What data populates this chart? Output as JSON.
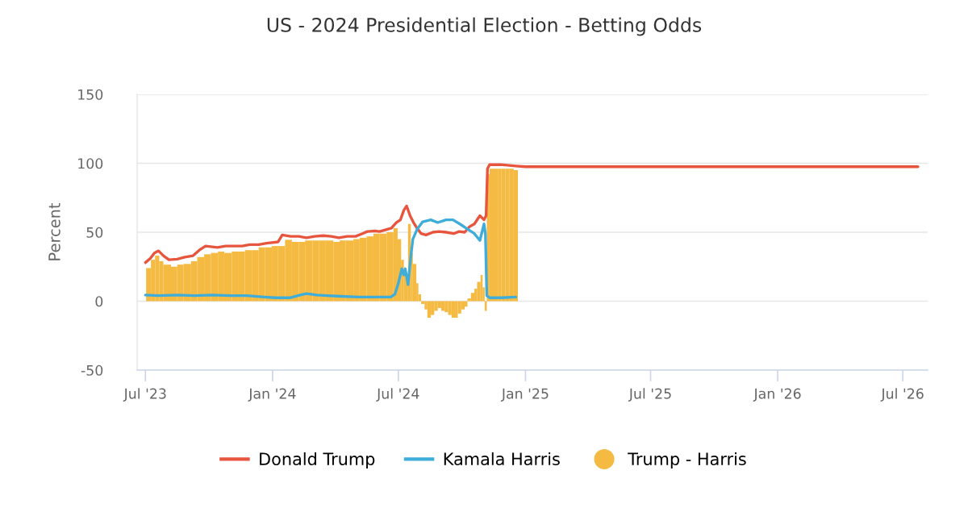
{
  "chart_data": {
    "type": "line",
    "title": "US - 2024 Presidential Election - Betting Odds",
    "ylabel": "Percent",
    "xlim": [
      "2023-06-19",
      "2026-08-06"
    ],
    "xticks": [
      {
        "value": "2023-07-01",
        "label": "Jul '23"
      },
      {
        "value": "2024-01-01",
        "label": "Jan '24"
      },
      {
        "value": "2024-07-01",
        "label": "Jul '24"
      },
      {
        "value": "2025-01-01",
        "label": "Jan '25"
      },
      {
        "value": "2025-07-01",
        "label": "Jul '25"
      },
      {
        "value": "2026-01-01",
        "label": "Jan '26"
      },
      {
        "value": "2026-07-01",
        "label": "Jul '26"
      }
    ],
    "ylim": [
      -50,
      150
    ],
    "yticks": [
      -50,
      0,
      50,
      100,
      150
    ],
    "grid": "y",
    "legend": "bottom",
    "series": [
      {
        "name": "Donald Trump",
        "color": "#e8553e",
        "x": [
          "2023-07-01",
          "2023-07-08",
          "2023-07-14",
          "2023-07-20",
          "2023-07-27",
          "2023-08-04",
          "2023-08-16",
          "2023-08-27",
          "2023-09-08",
          "2023-09-17",
          "2023-09-26",
          "2023-10-13",
          "2023-10-25",
          "2023-11-06",
          "2023-11-18",
          "2023-11-29",
          "2023-12-12",
          "2023-12-23",
          "2024-01-09",
          "2024-01-15",
          "2024-01-27",
          "2024-02-08",
          "2024-02-19",
          "2024-03-02",
          "2024-03-14",
          "2024-03-26",
          "2024-04-06",
          "2024-04-18",
          "2024-04-30",
          "2024-05-10",
          "2024-05-17",
          "2024-05-28",
          "2024-06-04",
          "2024-06-14",
          "2024-06-21",
          "2024-06-28",
          "2024-07-04",
          "2024-07-09",
          "2024-07-13",
          "2024-07-18",
          "2024-07-23",
          "2024-07-28",
          "2024-08-03",
          "2024-08-10",
          "2024-08-20",
          "2024-08-29",
          "2024-09-08",
          "2024-09-19",
          "2024-09-27",
          "2024-10-05",
          "2024-10-12",
          "2024-10-19",
          "2024-10-27",
          "2024-11-02",
          "2024-11-05",
          "2024-11-07",
          "2024-11-10",
          "2024-11-26",
          "2024-12-18",
          "2025-01-01",
          "2026-07-23"
        ],
        "values": [
          28,
          31,
          35,
          36.5,
          33,
          30,
          30.5,
          32,
          33,
          37,
          40,
          39,
          40,
          40,
          40,
          41,
          41,
          42,
          43,
          48,
          47,
          47,
          46,
          47,
          47.5,
          47,
          46,
          47,
          47,
          49,
          50.5,
          51,
          50.5,
          52,
          53,
          57,
          59,
          66,
          69,
          62,
          57,
          53,
          49,
          48,
          50,
          50.5,
          50,
          49,
          50.5,
          50,
          54,
          56,
          62,
          59,
          62,
          96,
          99,
          99,
          98,
          97.5,
          97.5
        ]
      },
      {
        "name": "Kamala Harris",
        "color": "#3fadda",
        "x": [
          "2023-07-01",
          "2023-07-20",
          "2023-08-16",
          "2023-09-10",
          "2023-10-05",
          "2023-11-01",
          "2023-11-25",
          "2023-12-20",
          "2024-01-05",
          "2024-01-27",
          "2024-02-10",
          "2024-02-19",
          "2024-03-05",
          "2024-03-20",
          "2024-04-10",
          "2024-05-05",
          "2024-05-30",
          "2024-06-20",
          "2024-06-26",
          "2024-07-01",
          "2024-07-06",
          "2024-07-09",
          "2024-07-11",
          "2024-07-15",
          "2024-07-19",
          "2024-07-22",
          "2024-07-28",
          "2024-08-05",
          "2024-08-17",
          "2024-08-27",
          "2024-09-08",
          "2024-09-18",
          "2024-09-28",
          "2024-10-10",
          "2024-10-19",
          "2024-10-27",
          "2024-11-02",
          "2024-11-04",
          "2024-11-06",
          "2024-11-10",
          "2024-11-26",
          "2024-12-18"
        ],
        "values": [
          4.5,
          4,
          4.5,
          4,
          4.5,
          4,
          4,
          3,
          2.5,
          2.5,
          4.5,
          5.5,
          4.5,
          4,
          3.5,
          3,
          3,
          3,
          5,
          13,
          23.5,
          19,
          23.5,
          12,
          32,
          45,
          52,
          57.5,
          59,
          57,
          59,
          59,
          56,
          52,
          49,
          44,
          56,
          49,
          4,
          2.5,
          2.5,
          3
        ]
      },
      {
        "name": "Trump - Harris",
        "type": "bar",
        "color": "#f5ba42",
        "x": [
          "2023-07-02",
          "2023-07-09",
          "2023-07-15",
          "2023-07-21",
          "2023-07-27",
          "2023-08-07",
          "2023-08-16",
          "2023-08-25",
          "2023-09-05",
          "2023-09-14",
          "2023-09-24",
          "2023-10-04",
          "2023-10-14",
          "2023-10-23",
          "2023-11-03",
          "2023-11-12",
          "2023-11-22",
          "2023-12-02",
          "2023-12-12",
          "2023-12-21",
          "2023-12-31",
          "2024-01-09",
          "2024-01-19",
          "2024-01-29",
          "2024-02-08",
          "2024-02-17",
          "2024-02-28",
          "2024-03-08",
          "2024-03-18",
          "2024-03-29",
          "2024-04-07",
          "2024-04-16",
          "2024-04-27",
          "2024-05-06",
          "2024-05-16",
          "2024-05-26",
          "2024-06-04",
          "2024-06-14",
          "2024-06-24",
          "2024-06-30",
          "2024-07-05",
          "2024-07-09",
          "2024-07-15",
          "2024-07-19",
          "2024-07-22",
          "2024-07-27",
          "2024-07-30",
          "2024-08-03",
          "2024-08-08",
          "2024-08-12",
          "2024-08-17",
          "2024-08-22",
          "2024-08-27",
          "2024-09-01",
          "2024-09-06",
          "2024-09-11",
          "2024-09-16",
          "2024-09-21",
          "2024-09-25",
          "2024-09-30",
          "2024-10-05",
          "2024-10-09",
          "2024-10-14",
          "2024-10-19",
          "2024-10-23",
          "2024-10-28",
          "2024-10-31",
          "2024-11-03",
          "2024-11-06",
          "2024-11-10",
          "2024-11-16",
          "2024-11-22",
          "2024-11-27",
          "2024-12-03",
          "2024-12-09",
          "2024-12-15"
        ],
        "values": [
          24,
          30,
          33,
          29,
          26.5,
          25,
          26.5,
          27,
          29,
          32,
          34,
          35,
          36,
          35,
          36,
          36,
          37,
          37,
          39,
          39,
          40,
          40,
          44.5,
          43,
          43,
          44,
          44,
          44,
          44,
          43,
          44,
          44,
          45,
          46,
          47,
          49,
          49,
          50,
          53,
          45,
          30,
          19,
          56,
          35,
          27,
          13,
          5,
          -2,
          -6,
          -12,
          -10,
          -7,
          -5,
          -7,
          -8,
          -10,
          -12,
          -12,
          -9,
          -6,
          -4,
          2,
          6,
          9,
          14,
          19,
          10,
          -7,
          92,
          96,
          96,
          96,
          96,
          96,
          96,
          95
        ]
      }
    ]
  }
}
